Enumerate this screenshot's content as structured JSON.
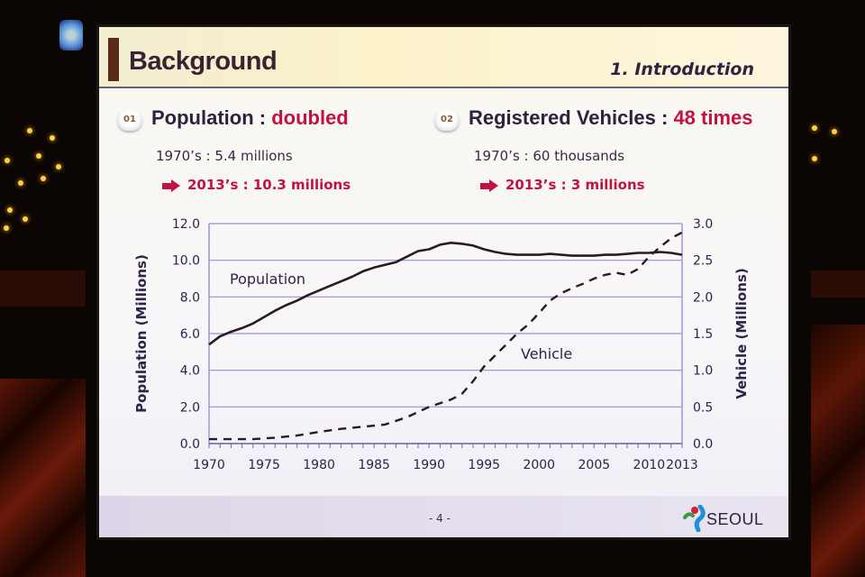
{
  "slide": {
    "title": "Background",
    "section": "1. Introduction",
    "page_number": "- 4 -",
    "logo_text": "SEOUL"
  },
  "points": [
    {
      "badge": "01",
      "heading": "Population : ",
      "highlight": "doubled",
      "line1": "1970’s : 5.4 millions",
      "line2": "2013’s : 10.3 millions"
    },
    {
      "badge": "02",
      "heading": "Registered Vehicles : ",
      "highlight": "48 times",
      "line1": "1970’s : 60 thousands",
      "line2": "2013’s : 3 millions"
    }
  ],
  "colors": {
    "accent_red": "#c3123f",
    "text_dark": "#2b2240",
    "grid": "#9a8fd8",
    "line": "#2a1a22"
  },
  "chart_data": {
    "type": "line",
    "title": "",
    "xlabel": "",
    "ylabel": "Population (Millions)",
    "y2label": "Vehicle (Millions)",
    "xlim": [
      1970,
      2013
    ],
    "ylim": [
      0,
      12
    ],
    "y2lim": [
      0,
      3
    ],
    "x_ticks": [
      "1970",
      "1975",
      "1980",
      "1985",
      "1990",
      "1995",
      "2000",
      "2005",
      "2010",
      "2013"
    ],
    "y_ticks": [
      "0.0",
      "2.0",
      "4.0",
      "6.0",
      "8.0",
      "10.0",
      "12.0"
    ],
    "y2_ticks": [
      "0.0",
      "0.5",
      "1.0",
      "1.5",
      "2.0",
      "2.5",
      "3.0"
    ],
    "grid": true,
    "series": [
      {
        "name": "Population",
        "axis": "left",
        "style": "solid",
        "x": [
          1970,
          1971,
          1972,
          1973,
          1974,
          1975,
          1976,
          1977,
          1978,
          1979,
          1980,
          1981,
          1982,
          1983,
          1984,
          1985,
          1986,
          1987,
          1988,
          1989,
          1990,
          1991,
          1992,
          1993,
          1994,
          1995,
          1996,
          1997,
          1998,
          1999,
          2000,
          2001,
          2002,
          2003,
          2004,
          2005,
          2006,
          2007,
          2008,
          2009,
          2010,
          2011,
          2012,
          2013
        ],
        "values": [
          5.4,
          5.85,
          6.1,
          6.3,
          6.55,
          6.9,
          7.25,
          7.55,
          7.8,
          8.1,
          8.35,
          8.6,
          8.85,
          9.1,
          9.4,
          9.6,
          9.75,
          9.9,
          10.2,
          10.5,
          10.6,
          10.85,
          10.95,
          10.9,
          10.8,
          10.6,
          10.45,
          10.35,
          10.3,
          10.3,
          10.3,
          10.35,
          10.3,
          10.25,
          10.25,
          10.25,
          10.3,
          10.3,
          10.35,
          10.4,
          10.4,
          10.45,
          10.4,
          10.3
        ]
      },
      {
        "name": "Vehicle",
        "axis": "right",
        "style": "dashed",
        "x": [
          1970,
          1972,
          1974,
          1976,
          1978,
          1980,
          1982,
          1984,
          1986,
          1988,
          1990,
          1992,
          1993,
          1994,
          1995,
          1996,
          1997,
          1998,
          1999,
          2000,
          2001,
          2002,
          2003,
          2004,
          2005,
          2006,
          2007,
          2008,
          2009,
          2010,
          2011,
          2012,
          2013
        ],
        "values": [
          0.06,
          0.06,
          0.06,
          0.08,
          0.11,
          0.16,
          0.2,
          0.23,
          0.26,
          0.36,
          0.5,
          0.6,
          0.68,
          0.85,
          1.05,
          1.2,
          1.35,
          1.5,
          1.62,
          1.78,
          1.95,
          2.05,
          2.12,
          2.18,
          2.25,
          2.3,
          2.33,
          2.3,
          2.38,
          2.55,
          2.68,
          2.8,
          2.88
        ]
      }
    ],
    "annotations": [
      "Population",
      "Vehicle"
    ],
    "legend": "none"
  }
}
